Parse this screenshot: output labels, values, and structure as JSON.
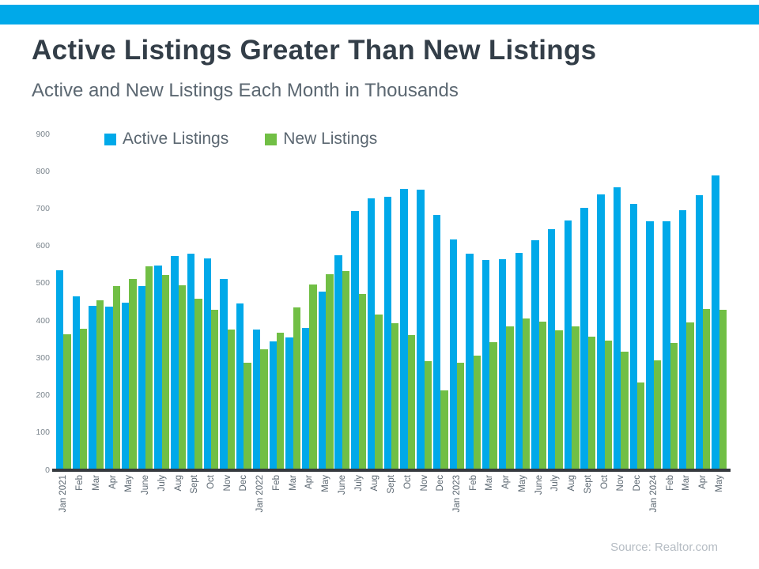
{
  "page": {
    "title": "Active Listings Greater Than New Listings",
    "subtitle": "Active and New Listings Each Month in Thousands",
    "source": "Source: Realtor.com",
    "accent_blue": "#00a9e9",
    "accent_green": "#71bf45"
  },
  "legend": {
    "items": [
      {
        "label": "Active Listings",
        "color": "#00a9e9"
      },
      {
        "label": "New Listings",
        "color": "#71bf45"
      }
    ]
  },
  "chart_data": {
    "type": "bar",
    "title": "Active Listings Greater Than New Listings",
    "subtitle": "Active and New Listings Each Month in Thousands",
    "unit": "thousands",
    "categories": [
      "Jan 2021",
      "Feb",
      "Mar",
      "Apr",
      "May",
      "June",
      "July",
      "Aug",
      "Sept",
      "Oct",
      "Nov",
      "Dec",
      "Jan 2022",
      "Feb",
      "Mar",
      "Apr",
      "May",
      "June",
      "July",
      "Aug",
      "Sept",
      "Oct",
      "Nov",
      "Dec",
      "Jan 2023",
      "Feb",
      "Mar",
      "Apr",
      "May",
      "June",
      "July",
      "Aug",
      "Sept",
      "Oct",
      "Nov",
      "Dec",
      "Jan 2024",
      "Feb",
      "Mar",
      "Apr",
      "May"
    ],
    "series": [
      {
        "name": "Active Listings",
        "color": "#00a9e9",
        "values": [
          535,
          465,
          440,
          438,
          448,
          494,
          549,
          575,
          580,
          567,
          513,
          446,
          378,
          346,
          355,
          381,
          479,
          577,
          694,
          728,
          733,
          755,
          751,
          684,
          618,
          580,
          564,
          566,
          583,
          617,
          647,
          670,
          703,
          739,
          758,
          714,
          668,
          667,
          696,
          737,
          789
        ]
      },
      {
        "name": "New Listings",
        "color": "#71bf45",
        "values": [
          365,
          379,
          455,
          493,
          513,
          546,
          524,
          496,
          460,
          431,
          376,
          288,
          325,
          369,
          436,
          497,
          526,
          533,
          473,
          417,
          395,
          362,
          293,
          215,
          288,
          307,
          344,
          386,
          407,
          398,
          374,
          386,
          358,
          348,
          317,
          236,
          295,
          340,
          397,
          433,
          430
        ]
      }
    ],
    "ylim": [
      0,
      900
    ],
    "yticks": [
      0,
      100,
      200,
      300,
      400,
      500,
      600,
      700,
      800,
      900
    ],
    "grid": false,
    "legend_position": "top-left",
    "x_label_rotation": 90
  }
}
